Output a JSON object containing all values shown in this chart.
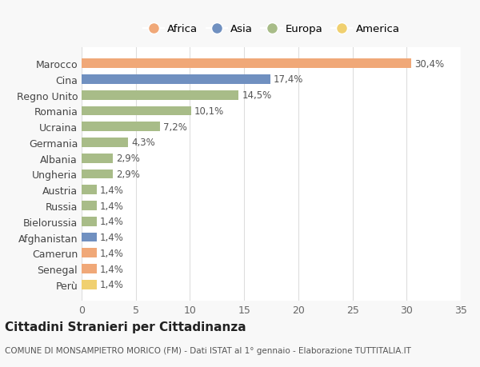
{
  "countries": [
    "Marocco",
    "Cina",
    "Regno Unito",
    "Romania",
    "Ucraina",
    "Germania",
    "Albania",
    "Ungheria",
    "Austria",
    "Russia",
    "Bielorussia",
    "Afghanistan",
    "Camerun",
    "Senegal",
    "Perù"
  ],
  "values": [
    30.4,
    17.4,
    14.5,
    10.1,
    7.2,
    4.3,
    2.9,
    2.9,
    1.4,
    1.4,
    1.4,
    1.4,
    1.4,
    1.4,
    1.4
  ],
  "labels": [
    "30,4%",
    "17,4%",
    "14,5%",
    "10,1%",
    "7,2%",
    "4,3%",
    "2,9%",
    "2,9%",
    "1,4%",
    "1,4%",
    "1,4%",
    "1,4%",
    "1,4%",
    "1,4%",
    "1,4%"
  ],
  "continents": [
    "Africa",
    "Asia",
    "Europa",
    "Europa",
    "Europa",
    "Europa",
    "Europa",
    "Europa",
    "Europa",
    "Europa",
    "Europa",
    "Asia",
    "Africa",
    "Africa",
    "America"
  ],
  "colors": {
    "Africa": "#F0A878",
    "Asia": "#7090C0",
    "Europa": "#A8BC88",
    "America": "#F0D070"
  },
  "legend_order": [
    "Africa",
    "Asia",
    "Europa",
    "America"
  ],
  "title": "Cittadini Stranieri per Cittadinanza",
  "subtitle": "COMUNE DI MONSAMPIETRO MORICO (FM) - Dati ISTAT al 1° gennaio - Elaborazione TUTTITALIA.IT",
  "xlim": [
    0,
    35
  ],
  "xticks": [
    0,
    5,
    10,
    15,
    20,
    25,
    30,
    35
  ],
  "background_color": "#f8f8f8",
  "bar_bg_color": "#ffffff"
}
